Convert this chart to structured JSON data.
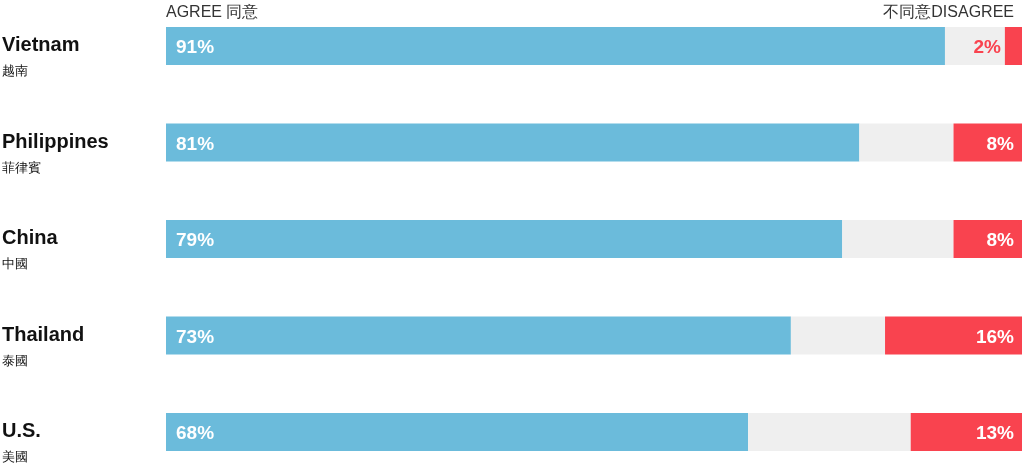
{
  "chart_data": {
    "type": "bar",
    "orientation": "horizontal",
    "stacked": true,
    "categories": [
      "Vietnam\n越南",
      "Philippines\n菲律賓",
      "China\n中國",
      "Thailand\n泰國",
      "U.S.\n美國"
    ],
    "series": [
      {
        "name": "AGREE 同意",
        "color": "#6bbbdb",
        "values": [
          91,
          81,
          79,
          73,
          68
        ],
        "value_labels": [
          "91%",
          "81%",
          "79%",
          "73%",
          "68%"
        ]
      },
      {
        "color": "#efefef",
        "values": [
          7,
          11,
          13,
          11,
          19
        ]
      },
      {
        "name": "不同意DISAGREE",
        "color": "#f9434f",
        "values": [
          2,
          8,
          8,
          16,
          13
        ],
        "value_labels": [
          "2%",
          "8%",
          "8%",
          "16%",
          "13%"
        ]
      }
    ],
    "xlim": [
      0,
      100
    ],
    "tick_labels": "y",
    "legend": "top"
  }
}
